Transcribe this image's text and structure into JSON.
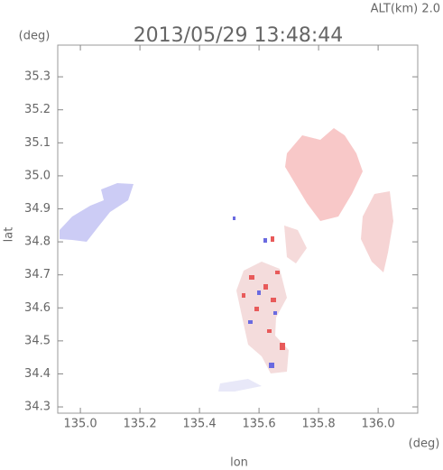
{
  "chart_data": {
    "type": "map",
    "title": "2013/05/29 13:48:44",
    "subtitle": "ALT(km) 2.0",
    "x_label": "lon",
    "y_label": "lat",
    "x_unit": "(deg)",
    "y_unit": "(deg)",
    "xlim": [
      134.924,
      136.133
    ],
    "xticks": [
      {
        "value": 135,
        "label": "135.0"
      },
      135.2,
      135.4,
      135.6,
      135.8,
      {
        "value": 136,
        "label": "136.0"
      }
    ],
    "ylim": [
      34.281,
      35.396
    ],
    "yticks": [
      34.3,
      34.4,
      34.5,
      34.6,
      34.7,
      34.8,
      34.9,
      {
        "value": 35,
        "label": "35.0"
      },
      35.1,
      35.2,
      35.3
    ]
  }
}
